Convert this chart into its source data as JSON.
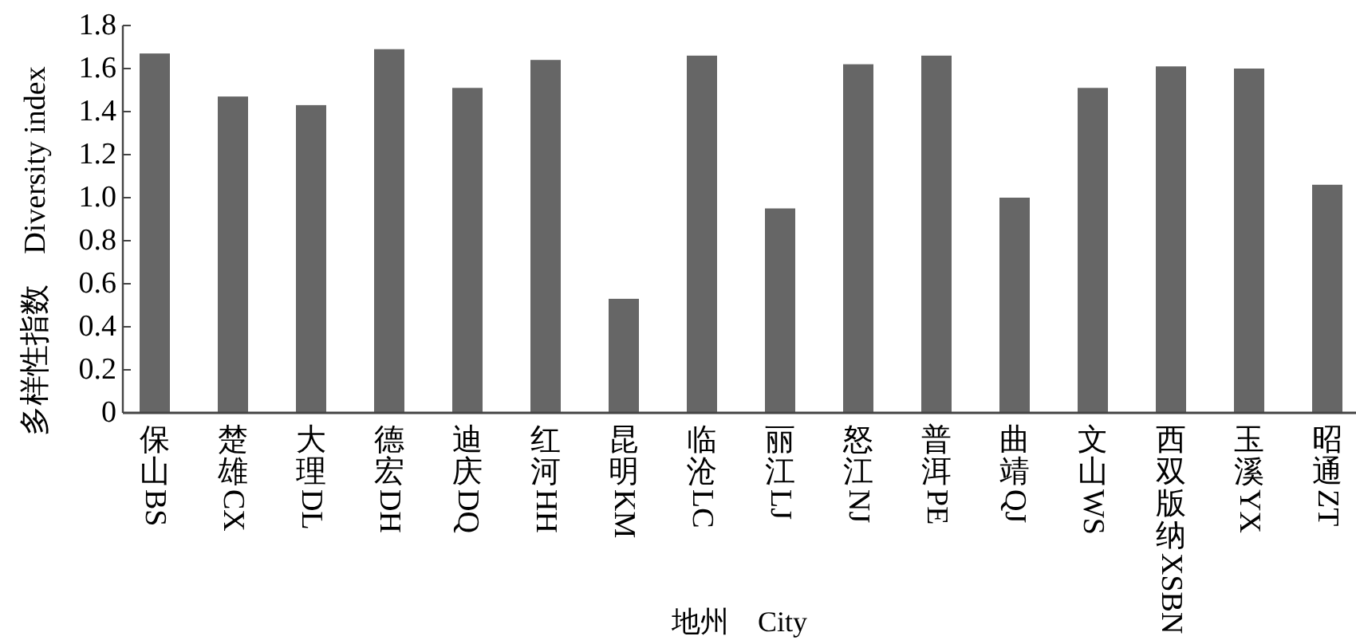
{
  "chart_data": {
    "type": "bar",
    "xlabel": "地州　City",
    "ylabel": "多样性指数　Diversity index",
    "categories": [
      "保山BS",
      "楚雄CX",
      "大理DL",
      "德宏DH",
      "迪庆DQ",
      "红河HH",
      "昆明KM",
      "临沧LC",
      "丽江LJ",
      "怒江NJ",
      "普洱PE",
      "曲靖QJ",
      "文山WS",
      "西双版纳XSBN",
      "玉溪YX",
      "昭通ZT"
    ],
    "values": [
      1.67,
      1.47,
      1.43,
      1.69,
      1.51,
      1.64,
      0.53,
      1.66,
      0.95,
      1.62,
      1.66,
      1.0,
      1.51,
      1.61,
      1.6,
      1.06
    ],
    "color": "#666666",
    "ylim": [
      0,
      1.8
    ],
    "yticks": [
      0,
      0.2,
      0.4,
      0.6,
      0.8,
      "1.0",
      1.2,
      1.4,
      1.6,
      1.8
    ],
    "grid": false
  }
}
